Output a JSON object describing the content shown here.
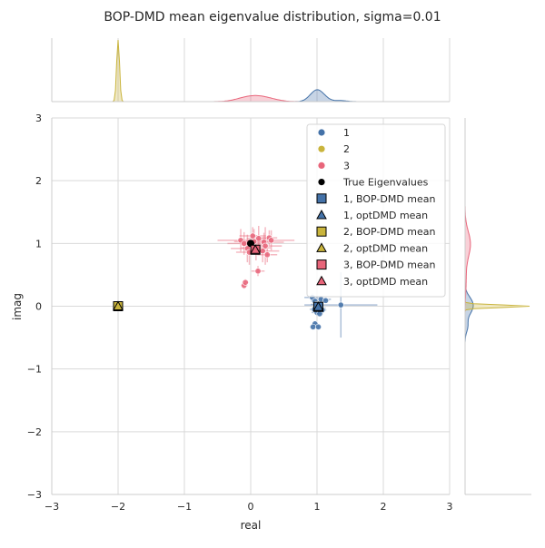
{
  "title": "BOP-DMD mean eigenvalue distribution, sigma=0.01",
  "chart_data": {
    "type": "scatter",
    "xlabel": "real",
    "ylabel": "imag",
    "xlim": [
      -3,
      3
    ],
    "ylim": [
      -3,
      3
    ],
    "xticks": [
      "−3",
      "−2",
      "−1",
      "0",
      "1",
      "2",
      "3"
    ],
    "yticks": [
      "−3",
      "−2",
      "−1",
      "0",
      "1",
      "2",
      "3"
    ],
    "grid": true,
    "legend_position": "top-right",
    "marginal_distributions": "kde",
    "colors": {
      "1": "#4472a8",
      "2": "#c9b43c",
      "3": "#e8657a",
      "true": "#000000"
    },
    "series": [
      {
        "name": "1",
        "color": "#4472a8",
        "points": [
          {
            "x": 0.93,
            "y": 0.14,
            "ex": 0.12,
            "ey": 0.06
          },
          {
            "x": 0.97,
            "y": 0.08,
            "ex": 0.06,
            "ey": 0.05
          },
          {
            "x": 1.06,
            "y": 0.11,
            "ex": 0.15,
            "ey": 0.05
          },
          {
            "x": 1.13,
            "y": 0.09,
            "ex": 0.05,
            "ey": 0.03
          },
          {
            "x": 0.99,
            "y": 0.03,
            "ex": 0.08,
            "ey": 0.04
          },
          {
            "x": 1.03,
            "y": -0.03,
            "ex": 0.1,
            "ey": 0.06
          },
          {
            "x": 0.96,
            "y": -0.05,
            "ex": 0.07,
            "ey": 0.05
          },
          {
            "x": 1.08,
            "y": -0.06,
            "ex": 0.06,
            "ey": 0.04
          },
          {
            "x": 1.36,
            "y": 0.02,
            "ex": 0.55,
            "ey": 0.52
          },
          {
            "x": 1.0,
            "y": -0.1,
            "ex": 0.08,
            "ey": 0.05
          },
          {
            "x": 1.04,
            "y": -0.12,
            "ex": 0.05,
            "ey": 0.04
          },
          {
            "x": 0.97,
            "y": -0.28,
            "ex": 0.04,
            "ey": 0.04
          },
          {
            "x": 0.94,
            "y": -0.33,
            "ex": 0.05,
            "ey": 0.04
          },
          {
            "x": 1.02,
            "y": -0.33,
            "ex": 0.04,
            "ey": 0.03
          },
          {
            "x": 1.01,
            "y": 0.01,
            "ex": 0.03,
            "ey": 0.03
          }
        ]
      },
      {
        "name": "2",
        "color": "#c9b43c",
        "points": [
          {
            "x": -2.0,
            "y": 0.0,
            "ex": 0.02,
            "ey": 0.01
          },
          {
            "x": -2.01,
            "y": 0.0,
            "ex": 0.02,
            "ey": 0.01
          },
          {
            "x": -1.99,
            "y": 0.0,
            "ex": 0.02,
            "ey": 0.01
          }
        ]
      },
      {
        "name": "3",
        "color": "#e8657a",
        "points": [
          {
            "x": -0.15,
            "y": 1.05,
            "ex": 0.35,
            "ey": 0.18
          },
          {
            "x": 0.12,
            "y": 1.08,
            "ex": 0.18,
            "ey": 0.2
          },
          {
            "x": 0.2,
            "y": 1.02,
            "ex": 0.3,
            "ey": 0.15
          },
          {
            "x": -0.05,
            "y": 0.92,
            "ex": 0.25,
            "ey": 0.22
          },
          {
            "x": 0.03,
            "y": 1.12,
            "ex": 0.2,
            "ey": 0.14
          },
          {
            "x": 0.28,
            "y": 1.09,
            "ex": 0.12,
            "ey": 0.12
          },
          {
            "x": 0.31,
            "y": 1.05,
            "ex": 0.35,
            "ey": 0.16
          },
          {
            "x": 0.22,
            "y": 0.96,
            "ex": 0.25,
            "ey": 0.3
          },
          {
            "x": 0.08,
            "y": 0.93,
            "ex": 0.22,
            "ey": 0.2
          },
          {
            "x": -0.1,
            "y": 1.0,
            "ex": 0.25,
            "ey": 0.18
          },
          {
            "x": 0.02,
            "y": 0.98,
            "ex": 0.15,
            "ey": 0.12
          },
          {
            "x": 0.25,
            "y": 0.82,
            "ex": 0.15,
            "ey": 0.12
          },
          {
            "x": 0.18,
            "y": 0.88,
            "ex": 0.25,
            "ey": 0.18
          },
          {
            "x": 0.11,
            "y": 0.56,
            "ex": 0.1,
            "ey": 0.08
          },
          {
            "x": -0.1,
            "y": 0.33,
            "ex": 0.05,
            "ey": 0.05
          },
          {
            "x": -0.08,
            "y": 0.38,
            "ex": 0.05,
            "ey": 0.05
          },
          {
            "x": 0.05,
            "y": 1.03,
            "ex": 0.3,
            "ey": 0.2
          },
          {
            "x": -0.02,
            "y": 0.86,
            "ex": 0.2,
            "ey": 0.2
          }
        ]
      }
    ],
    "true_eigenvalues": [
      {
        "x": 1,
        "y": 0
      },
      {
        "x": -2,
        "y": 0
      },
      {
        "x": 0,
        "y": 1
      }
    ],
    "bop_dmd_means": [
      {
        "series": "1",
        "x": 1.02,
        "y": -0.01
      },
      {
        "series": "2",
        "x": -2.0,
        "y": 0.0
      },
      {
        "series": "3",
        "x": 0.07,
        "y": 0.9
      }
    ],
    "optdmd_means": [
      {
        "series": "1",
        "x": 1.02,
        "y": -0.01
      },
      {
        "series": "2",
        "x": -2.0,
        "y": 0.0
      },
      {
        "series": "3",
        "x": 0.07,
        "y": 0.9
      }
    ],
    "legend": [
      {
        "label": "1",
        "marker": "circle",
        "color": "#4472a8"
      },
      {
        "label": "2",
        "marker": "circle",
        "color": "#c9b43c"
      },
      {
        "label": "3",
        "marker": "circle",
        "color": "#e8657a"
      },
      {
        "label": "True Eigenvalues",
        "marker": "circle",
        "color": "#000000"
      },
      {
        "label": "1, BOP-DMD mean",
        "marker": "square",
        "color": "#4472a8"
      },
      {
        "label": "1, optDMD mean",
        "marker": "triangle",
        "color": "#4472a8"
      },
      {
        "label": "2, BOP-DMD mean",
        "marker": "square",
        "color": "#c9b43c"
      },
      {
        "label": "2, optDMD mean",
        "marker": "triangle",
        "color": "#c9b43c"
      },
      {
        "label": "3, BOP-DMD mean",
        "marker": "square",
        "color": "#e8657a"
      },
      {
        "label": "3, optDMD mean",
        "marker": "triangle",
        "color": "#e8657a"
      }
    ]
  }
}
